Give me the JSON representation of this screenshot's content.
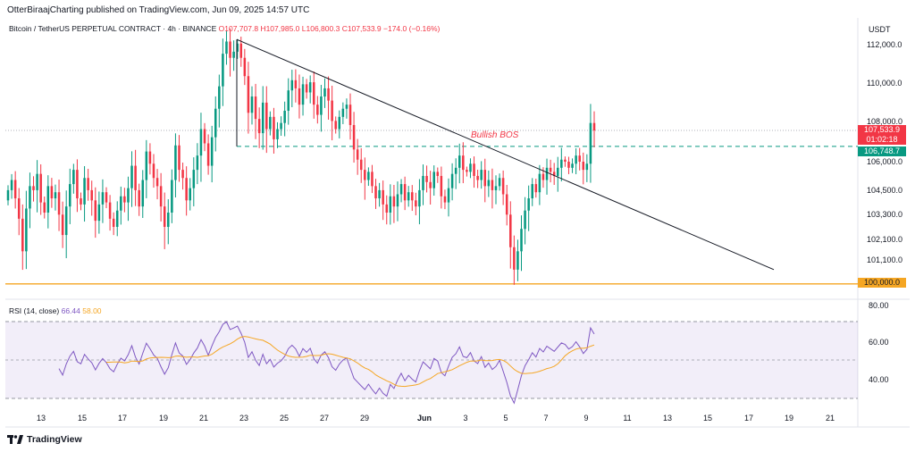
{
  "header": {
    "publisher_line": "OtterBiraajCharting published on TradingView.com, Jun 09, 2025 14:57 UTC"
  },
  "legend": {
    "symbol": "Bitcoin / TetherUS PERPETUAL CONTRACT · 4h · BINANCE",
    "open": "O107,707.8",
    "high": "H107,985.0",
    "low": "L106,800.3",
    "close": "C107,533.9",
    "change": "−174.0 (−0.16%)"
  },
  "currency": "USDT",
  "price_tags": {
    "last_price": "107,533.9",
    "countdown": "01:02:18",
    "green_level": "106,748.7",
    "support": "100,000.0"
  },
  "annotation": "Bullish BOS",
  "rsi_legend": {
    "name": "RSI (14, close)",
    "rsi_value": "66.44",
    "ma_value": "58.00"
  },
  "branding": "TradingView",
  "colors": {
    "up": "#089981",
    "down": "#f23645",
    "rsi": "#7e57c2",
    "rsi_ma": "#f5a623",
    "support": "#f5a623",
    "bos": "#089981"
  },
  "chart_data": {
    "type": "candlestick",
    "timeframe": "4h",
    "price_axis_ticks": [
      "112,000.0",
      "110,000.0",
      "108,000.0",
      "106,000.0",
      "104,500.0",
      "103,300.0",
      "102,100.0",
      "101,100.0"
    ],
    "x_axis_ticks": [
      "13",
      "15",
      "17",
      "19",
      "21",
      "23",
      "25",
      "27",
      "29",
      "Jun",
      "3",
      "5",
      "7",
      "9",
      "11",
      "13",
      "15",
      "17",
      "19",
      "21"
    ],
    "rsi_axis_ticks": [
      "80.00",
      "60.00",
      "40.00"
    ],
    "candle_closes": [
      104600,
      105100,
      104200,
      103200,
      101600,
      103700,
      104800,
      104600,
      105400,
      104000,
      103500,
      104800,
      104200,
      104500,
      103400,
      102400,
      103800,
      104900,
      105600,
      104200,
      103900,
      105200,
      104600,
      104100,
      103100,
      103900,
      104500,
      104000,
      103200,
      102800,
      103600,
      104300,
      104000,
      104700,
      105800,
      104600,
      103800,
      105100,
      106500,
      105900,
      105200,
      104800,
      103800,
      102800,
      103500,
      105100,
      106800,
      105600,
      105200,
      104100,
      104700,
      105600,
      106300,
      107600,
      106900,
      105800,
      107200,
      108600,
      109700,
      111300,
      111900,
      111100,
      111400,
      111800,
      111100,
      110200,
      108400,
      109200,
      108100,
      107400,
      108900,
      107600,
      108200,
      107100,
      107600,
      107900,
      108500,
      109500,
      110000,
      109600,
      108800,
      109800,
      109400,
      109900,
      108800,
      108300,
      109200,
      109600,
      109000,
      108000,
      107600,
      108200,
      108600,
      108800,
      107800,
      106600,
      106100,
      105600,
      105100,
      105500,
      104800,
      104200,
      104600,
      103900,
      103500,
      104300,
      103800,
      104400,
      104900,
      104100,
      104500,
      104100,
      103800,
      104600,
      105300,
      105000,
      104700,
      105500,
      105300,
      104300,
      104000,
      104700,
      105400,
      105700,
      106300,
      105600,
      105500,
      105900,
      105300,
      105100,
      105600,
      104800,
      105100,
      104600,
      104800,
      105200,
      104400,
      103400,
      101800,
      100700,
      101600,
      102700,
      103600,
      104200,
      104900,
      104500,
      105400,
      105100,
      105700,
      105500,
      105300,
      105700,
      106100,
      106000,
      105700,
      105900,
      106300,
      106000,
      105600,
      105900,
      107900,
      107533.9
    ],
    "trendline": {
      "start_price": 112000,
      "end_price": 100700,
      "start_tick": "23",
      "end_tick": "19"
    },
    "levels": {
      "bos": 106748.7,
      "support": 100000.0,
      "last": 107533.9
    },
    "rsi": {
      "period": 14,
      "last": 66.44,
      "ma_last": 58.0,
      "upper_band": 70,
      "mid": 50,
      "lower_band": 30,
      "ylim": [
        24,
        82
      ]
    },
    "ylim": [
      100000,
      112800
    ]
  }
}
